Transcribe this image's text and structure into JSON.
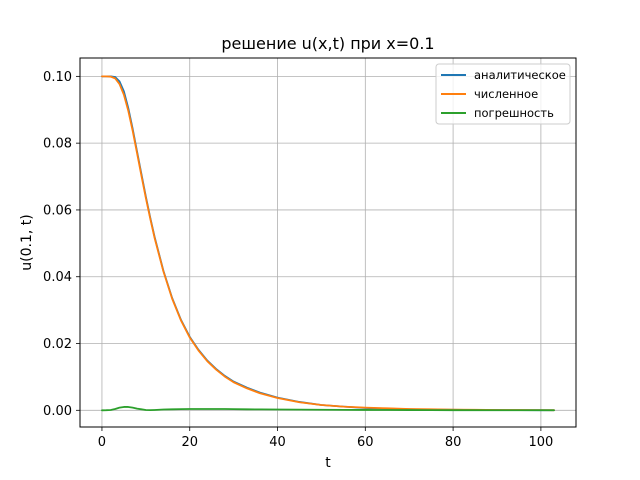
{
  "chart_data": {
    "type": "line",
    "title": "решение u(x,t) при x=0.1",
    "xlabel": "t",
    "ylabel": "u(0.1, t)",
    "xlim": [
      -5,
      108
    ],
    "ylim": [
      -0.005,
      0.1055
    ],
    "xticks": [
      0,
      20,
      40,
      60,
      80,
      100
    ],
    "xtick_labels": [
      "0",
      "20",
      "40",
      "60",
      "80",
      "100"
    ],
    "yticks": [
      0.0,
      0.02,
      0.04,
      0.06,
      0.08,
      0.1
    ],
    "ytick_labels": [
      "0.00",
      "0.02",
      "0.04",
      "0.06",
      "0.08",
      "0.10"
    ],
    "grid": true,
    "legend_position": "top-right",
    "series": [
      {
        "name": "аналитическое",
        "color": "#1f77b4",
        "x": [
          0,
          1,
          2,
          3,
          4,
          5,
          6,
          7,
          8,
          9,
          10,
          11,
          12,
          14,
          16,
          18,
          20,
          22,
          24,
          26,
          28,
          30,
          33,
          36,
          40,
          45,
          50,
          55,
          60,
          65,
          70,
          75,
          80,
          85,
          90,
          95,
          100,
          103
        ],
        "y": [
          0.1,
          0.1,
          0.1,
          0.0998,
          0.0985,
          0.0955,
          0.0905,
          0.0843,
          0.0775,
          0.0707,
          0.064,
          0.0577,
          0.0519,
          0.0418,
          0.0336,
          0.0271,
          0.022,
          0.0181,
          0.0149,
          0.0124,
          0.0103,
          0.0086,
          0.0068,
          0.0053,
          0.0038,
          0.0025,
          0.0016,
          0.0011,
          0.0007,
          0.0005,
          0.0003,
          0.0002,
          0.00015,
          0.0001,
          7e-05,
          5e-05,
          3e-05,
          2e-05
        ]
      },
      {
        "name": "численное",
        "color": "#ff7f0e",
        "x": [
          0,
          1,
          2,
          3,
          4,
          5,
          6,
          7,
          8,
          9,
          10,
          11,
          12,
          14,
          16,
          18,
          20,
          22,
          24,
          26,
          28,
          30,
          33,
          36,
          40,
          45,
          50,
          55,
          60,
          65,
          70,
          75,
          80,
          85,
          90,
          95,
          100,
          103
        ],
        "y": [
          0.1,
          0.1,
          0.0999,
          0.0994,
          0.0977,
          0.0945,
          0.0897,
          0.0837,
          0.077,
          0.0702,
          0.0636,
          0.0574,
          0.0516,
          0.0416,
          0.0334,
          0.0269,
          0.0218,
          0.0179,
          0.0147,
          0.0122,
          0.0101,
          0.0084,
          0.0066,
          0.0051,
          0.0037,
          0.0024,
          0.0016,
          0.0011,
          0.0008,
          0.0006,
          0.0004,
          0.0003,
          0.0002,
          0.00015,
          0.0001,
          7e-05,
          5e-05,
          3e-05
        ]
      },
      {
        "name": "погрешность",
        "color": "#2ca02c",
        "x": [
          0,
          1,
          2,
          3,
          4,
          5,
          6,
          7,
          8,
          9,
          10,
          11,
          12,
          14,
          16,
          18,
          20,
          22,
          24,
          26,
          28,
          30,
          33,
          36,
          40,
          45,
          50,
          55,
          60,
          65,
          70,
          75,
          80,
          85,
          90,
          95,
          100,
          103
        ],
        "y": [
          0.0,
          3e-05,
          0.0001,
          0.0004,
          0.0008,
          0.001,
          0.001,
          0.0008,
          0.0005,
          0.0003,
          0.0001,
          5e-05,
          0.0001,
          0.00025,
          0.0003,
          0.00035,
          0.0004,
          0.0004,
          0.0004,
          0.0004,
          0.00038,
          0.00035,
          0.0003,
          0.00027,
          0.00024,
          0.0002,
          0.00017,
          0.00014,
          0.00011,
          9e-05,
          7e-05,
          5e-05,
          4e-05,
          3e-05,
          2e-05,
          2e-05,
          1e-05,
          1e-05
        ]
      }
    ]
  }
}
